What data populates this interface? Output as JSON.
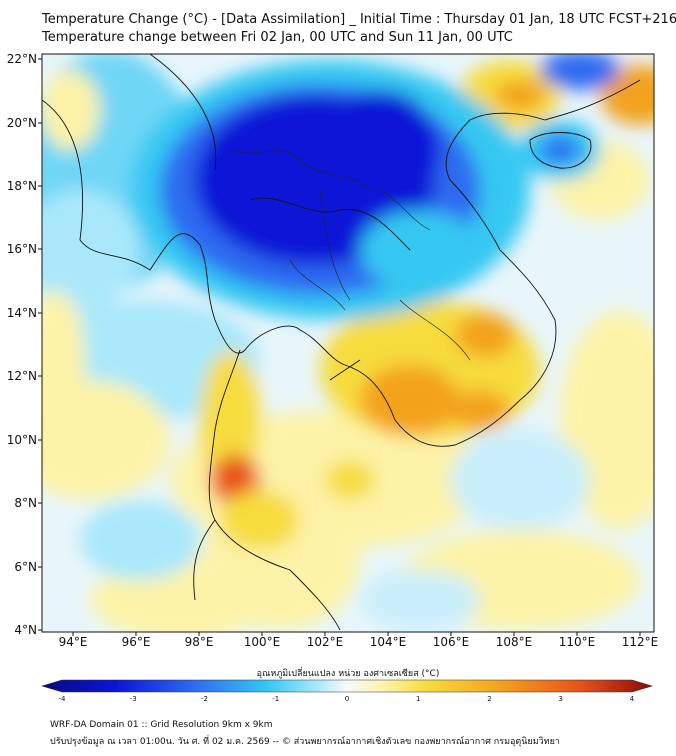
{
  "header": {
    "title_line1": "Temperature Change (°C) - [Data Assimilation] _ Initial Time : Thursday 01 Jan, 18 UTC FCST+216",
    "title_line2": "Temperature change between Fri 02 Jan, 00 UTC and Sun 11 Jan, 00 UTC"
  },
  "map": {
    "lat_labels": [
      "22°N",
      "20°N",
      "18°N",
      "16°N",
      "14°N",
      "12°N",
      "10°N",
      "8°N",
      "6°N",
      "4°N"
    ],
    "lon_labels": [
      "94°E",
      "96°E",
      "98°E",
      "100°E",
      "102°E",
      "104°E",
      "106°E",
      "108°E",
      "110°E",
      "112°E"
    ],
    "palette": {
      "deep_blue": "#0a14d6",
      "blue": "#2f6bf0",
      "cyan": "#34c8f2",
      "light_cyan": "#a9e8fb",
      "white": "#f6fbff",
      "light_yellow": "#fdf3a8",
      "yellow": "#f7dc3e",
      "orange": "#f3a21f",
      "red_orange": "#e8541a"
    }
  },
  "colorbar": {
    "title": "อุณหภูมิเปลี่ยนแปลง หน่วย องศาเซลเซียส (°C)",
    "ticks": [
      "-4",
      "-3",
      "-2",
      "-1",
      "0",
      "1",
      "2",
      "3",
      "4"
    ]
  },
  "footer": {
    "line1": "WRF-DA Domain 01 :: Grid Resolution 9km x 9km",
    "line2": "ปรับปรุงข้อมูล ณ เวลา 01:00น. วัน ศ. ที่ 02 ม.ค. 2569 -- © ส่วนพยากรณ์อากาศเชิงตัวเลข กองพยากรณ์อากาศ กรมอุตุนิยมวิทยา"
  }
}
